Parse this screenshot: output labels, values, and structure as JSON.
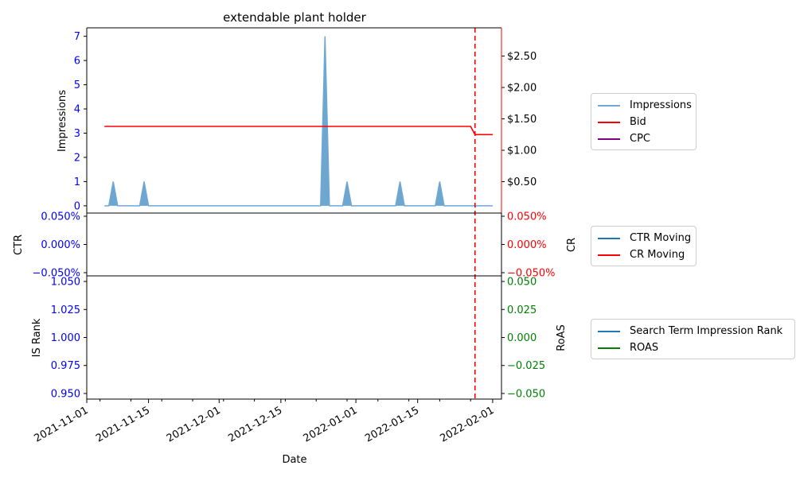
{
  "chart_data": [
    {
      "type": "area",
      "title": "extendable plant holder",
      "ylabel": "Impressions",
      "ylabel_right": "",
      "ylim": [
        -0.3,
        7.35
      ],
      "yticks": [
        0,
        1,
        2,
        3,
        4,
        5,
        6,
        7
      ],
      "yticks_right": [
        "$0.50",
        "$1.00",
        "$1.50",
        "$2.00",
        "$2.50"
      ],
      "ylim_right": [
        0,
        2.95
      ],
      "xlim": [
        "2021-11-01",
        "2022-02-03"
      ],
      "xticks": [
        "2021-11-01",
        "2021-11-15",
        "2021-12-01",
        "2021-12-15",
        "2022-01-01",
        "2022-01-15",
        "2022-02-01"
      ],
      "vline": "2022-01-28",
      "series": [
        {
          "name": "Impressions",
          "color": "#1f77b4",
          "axis": "left",
          "x": [
            "2021-11-05",
            "2021-11-06",
            "2021-11-07",
            "2021-11-08",
            "2021-11-13",
            "2021-11-14",
            "2021-11-15",
            "2021-12-24",
            "2021-12-25",
            "2021-12-26",
            "2021-12-29",
            "2021-12-30",
            "2021-12-31",
            "2022-01-10",
            "2022-01-11",
            "2022-01-12",
            "2022-01-19",
            "2022-01-20",
            "2022-01-21",
            "2022-02-01"
          ],
          "values": [
            0,
            0,
            1,
            0,
            0,
            1,
            0,
            0,
            7,
            0,
            0,
            1,
            0,
            0,
            1,
            0,
            0,
            1,
            0,
            0
          ]
        },
        {
          "name": "Bid",
          "color": "#ff0000",
          "axis": "right",
          "x": [
            "2021-11-05",
            "2022-01-27",
            "2022-01-28",
            "2022-02-01"
          ],
          "values": [
            1.38,
            1.38,
            1.25,
            1.25
          ]
        },
        {
          "name": "CPC",
          "color": "#800080",
          "axis": "right",
          "x": [],
          "values": []
        }
      ],
      "legend_location": "right"
    },
    {
      "type": "line",
      "ylabel": "CTR",
      "ylabel_right": "CR",
      "yticks": [
        "0.050%",
        "0.000%",
        "−0.050%"
      ],
      "yticks_right": [
        "0.050%",
        "0.000%",
        "−0.050%"
      ],
      "ylim": [
        -0.05,
        0.05
      ],
      "series": [
        {
          "name": "CTR Moving",
          "color": "#1f77b4",
          "x": [],
          "values": []
        },
        {
          "name": "CR Moving",
          "color": "#ff0000",
          "x": [],
          "values": []
        }
      ],
      "legend_location": "right"
    },
    {
      "type": "line",
      "xlabel": "Date",
      "ylabel": "IS Rank",
      "ylabel_right": "RoAS",
      "ylim": [
        0.945,
        1.055
      ],
      "yticks": [
        "1.050",
        "1.025",
        "1.000",
        "0.975",
        "0.950"
      ],
      "ylim_right": [
        -0.055,
        0.055
      ],
      "yticks_right": [
        "0.050",
        "0.025",
        "0.000",
        "−0.025",
        "−0.050"
      ],
      "series": [
        {
          "name": "Search Term Impression Rank",
          "color": "#1f77b4",
          "x": [],
          "values": []
        },
        {
          "name": "ROAS",
          "color": "#008000",
          "x": [],
          "values": []
        }
      ],
      "legend_location": "right"
    }
  ]
}
